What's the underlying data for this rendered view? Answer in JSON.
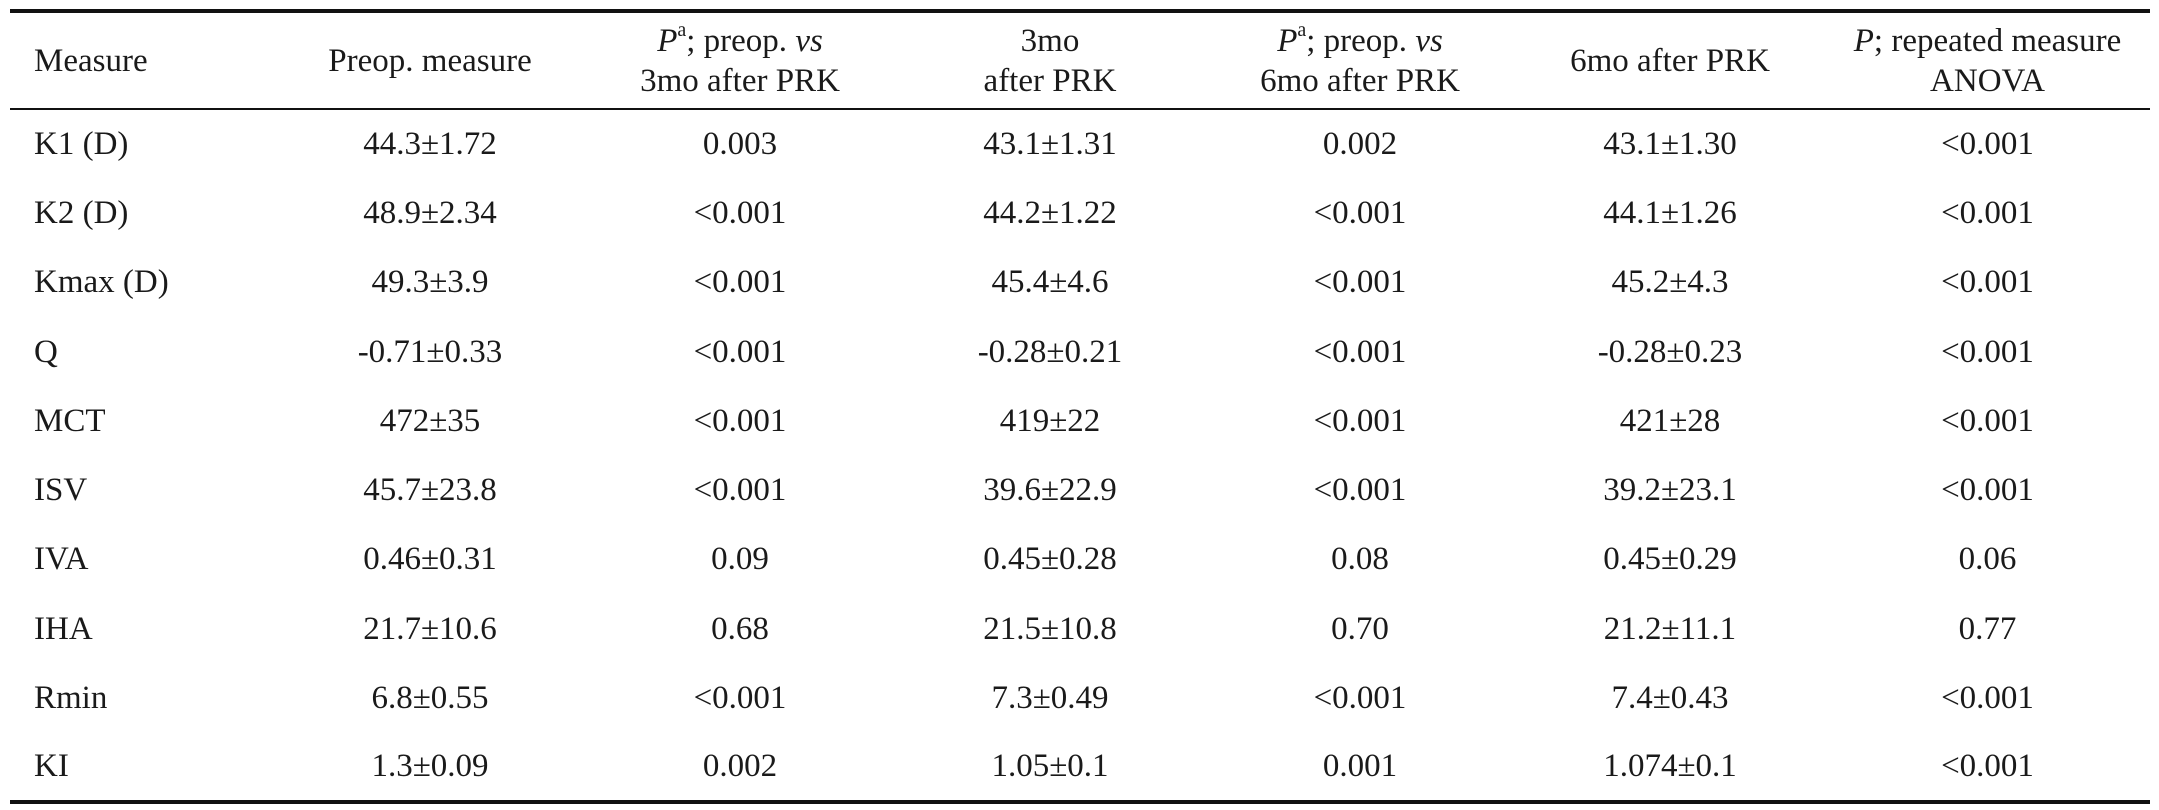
{
  "table": {
    "headers": [
      {
        "line1": [
          {
            "text": "Measure",
            "italic": false
          }
        ],
        "line2": []
      },
      {
        "line1": [
          {
            "text": "Preop. measure",
            "italic": false
          }
        ],
        "line2": []
      },
      {
        "line1": [
          {
            "text": "P",
            "italic": true
          },
          {
            "text": "a",
            "sup": true
          },
          {
            "text": "; preop. ",
            "italic": false
          },
          {
            "text": "vs",
            "italic": true
          }
        ],
        "line2": [
          {
            "text": "3mo after PRK",
            "italic": false
          }
        ]
      },
      {
        "line1": [
          {
            "text": "3mo",
            "italic": false
          }
        ],
        "line2": [
          {
            "text": "after PRK",
            "italic": false
          }
        ]
      },
      {
        "line1": [
          {
            "text": "P",
            "italic": true
          },
          {
            "text": "a",
            "sup": true
          },
          {
            "text": "; preop. ",
            "italic": false
          },
          {
            "text": "vs",
            "italic": true
          }
        ],
        "line2": [
          {
            "text": "6mo after PRK",
            "italic": false
          }
        ]
      },
      {
        "line1": [
          {
            "text": "6mo after PRK",
            "italic": false
          }
        ],
        "line2": []
      },
      {
        "line1": [
          {
            "text": "P",
            "italic": true
          },
          {
            "text": "; repeated measure",
            "italic": false
          }
        ],
        "line2": [
          {
            "text": "ANOVA",
            "italic": false
          }
        ]
      }
    ],
    "rows": [
      [
        "K1 (D)",
        "44.3±1.72",
        "0.003",
        "43.1±1.31",
        "0.002",
        "43.1±1.30",
        "<0.001"
      ],
      [
        "K2 (D)",
        "48.9±2.34",
        "<0.001",
        "44.2±1.22",
        "<0.001",
        "44.1±1.26",
        "<0.001"
      ],
      [
        "Kmax (D)",
        "49.3±3.9",
        "<0.001",
        "45.4±4.6",
        "<0.001",
        "45.2±4.3",
        "<0.001"
      ],
      [
        "Q",
        "-0.71±0.33",
        "<0.001",
        "-0.28±0.21",
        "<0.001",
        "-0.28±0.23",
        "<0.001"
      ],
      [
        "MCT",
        "472±35",
        "<0.001",
        "419±22",
        "<0.001",
        "421±28",
        "<0.001"
      ],
      [
        "ISV",
        "45.7±23.8",
        "<0.001",
        "39.6±22.9",
        "<0.001",
        "39.2±23.1",
        "<0.001"
      ],
      [
        "IVA",
        "0.46±0.31",
        "0.09",
        "0.45±0.28",
        "0.08",
        "0.45±0.29",
        "0.06"
      ],
      [
        "IHA",
        "21.7±10.6",
        "0.68",
        "21.5±10.8",
        "0.70",
        "21.2±11.1",
        "0.77"
      ],
      [
        "Rmin",
        "6.8±0.55",
        "<0.001",
        "7.3±0.49",
        "<0.001",
        "7.4±0.43",
        "<0.001"
      ],
      [
        "KI",
        "1.3±0.09",
        "0.002",
        "1.05±0.1",
        "0.001",
        "1.074±0.1",
        "<0.001"
      ]
    ]
  }
}
